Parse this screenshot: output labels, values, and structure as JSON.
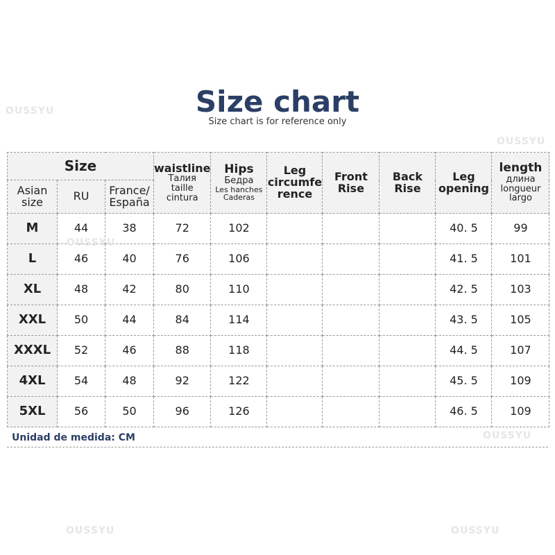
{
  "title": "Size chart",
  "subtitle": "Size chart is for reference only",
  "watermark": "OUSSYU",
  "header": {
    "size": "Size",
    "asian": [
      "Asian",
      "size"
    ],
    "ru": "RU",
    "france": [
      "France/",
      "España"
    ],
    "waist": {
      "main": "waistline",
      "sub": [
        "Талия",
        "taille",
        "cintura"
      ]
    },
    "hips": {
      "main": "Hips",
      "sub": [
        "Бедра",
        "Les hanches",
        "Caderas"
      ]
    },
    "leg_circ": [
      "Leg",
      "circumfe",
      "rence"
    ],
    "front_rise": [
      "Front",
      "Rise"
    ],
    "back_rise": [
      "Back",
      "Rise"
    ],
    "leg_opening": [
      "Leg",
      "opening"
    ],
    "length": {
      "main": "length",
      "sub": [
        "длина",
        "longueur",
        "largo"
      ]
    }
  },
  "rows": [
    [
      "M",
      "44",
      "38",
      "72",
      "102",
      "",
      "",
      "",
      "40. 5",
      "99"
    ],
    [
      "L",
      "46",
      "40",
      "76",
      "106",
      "",
      "",
      "",
      "41. 5",
      "101"
    ],
    [
      "XL",
      "48",
      "42",
      "80",
      "110",
      "",
      "",
      "",
      "42. 5",
      "103"
    ],
    [
      "XXL",
      "50",
      "44",
      "84",
      "114",
      "",
      "",
      "",
      "43. 5",
      "105"
    ],
    [
      "XXXL",
      "52",
      "46",
      "88",
      "118",
      "",
      "",
      "",
      "44. 5",
      "107"
    ],
    [
      "4XL",
      "54",
      "48",
      "92",
      "122",
      "",
      "",
      "",
      "45. 5",
      "109"
    ],
    [
      "5XL",
      "56",
      "50",
      "96",
      "126",
      "",
      "",
      "",
      "46. 5",
      "109"
    ]
  ],
  "note": "Unidad de medida: CM"
}
